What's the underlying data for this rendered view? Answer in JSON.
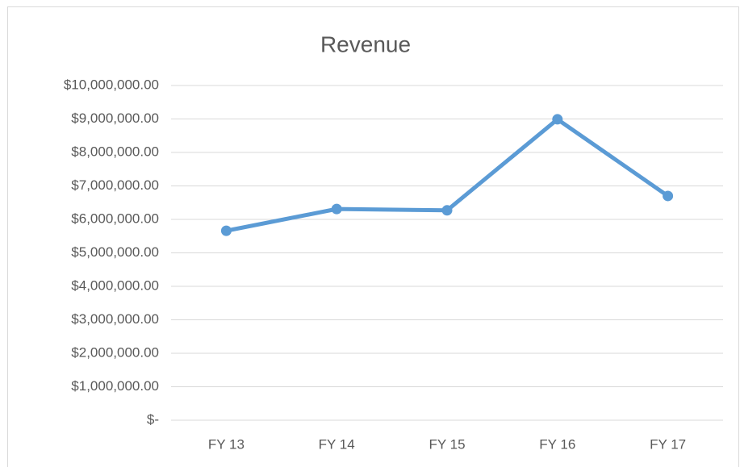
{
  "chart_data": {
    "type": "line",
    "title": "Revenue",
    "categories": [
      "FY 13",
      "FY 14",
      "FY 15",
      "FY 16",
      "FY 17"
    ],
    "values": [
      5660000,
      6310000,
      6270000,
      8990000,
      6700000
    ],
    "color": "#5b9bd5",
    "ylim": [
      0,
      10000000
    ],
    "yticks": [
      {
        "value": 0,
        "label": "$-"
      },
      {
        "value": 1000000,
        "label": "$1,000,000.00"
      },
      {
        "value": 2000000,
        "label": "$2,000,000.00"
      },
      {
        "value": 3000000,
        "label": "$3,000,000.00"
      },
      {
        "value": 4000000,
        "label": "$4,000,000.00"
      },
      {
        "value": 5000000,
        "label": "$5,000,000.00"
      },
      {
        "value": 6000000,
        "label": "$6,000,000.00"
      },
      {
        "value": 7000000,
        "label": "$7,000,000.00"
      },
      {
        "value": 8000000,
        "label": "$8,000,000.00"
      },
      {
        "value": 9000000,
        "label": "$9,000,000.00"
      },
      {
        "value": 10000000,
        "label": "$10,000,000.00"
      }
    ],
    "grid": true
  }
}
